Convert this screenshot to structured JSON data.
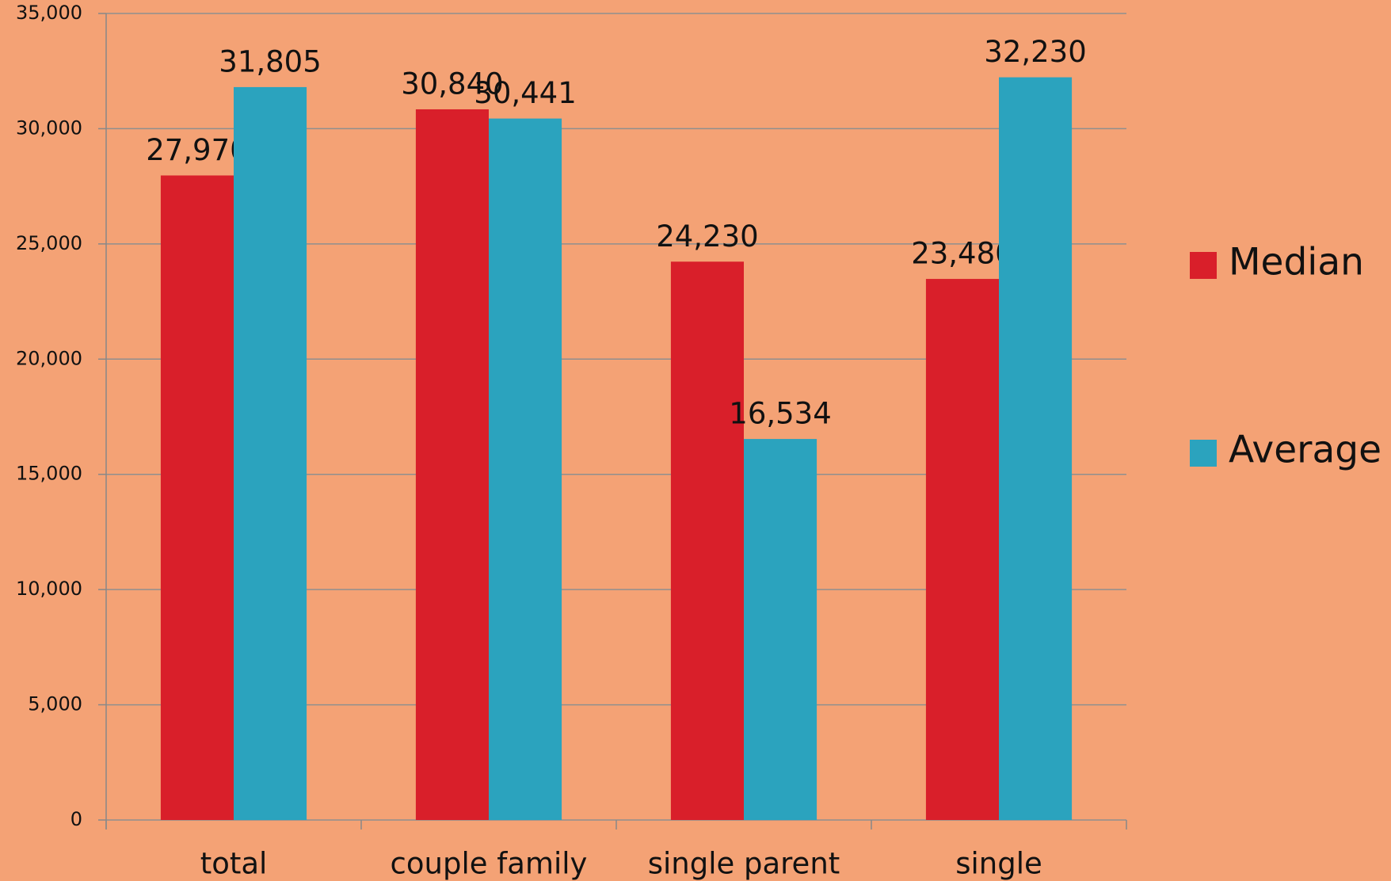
{
  "chart_data": {
    "type": "bar",
    "categories": [
      "total",
      "couple family",
      "single parent",
      "single"
    ],
    "series": [
      {
        "name": "Median",
        "color": "#D91F2A",
        "values": [
          27970,
          30840,
          24230,
          23480
        ],
        "value_labels": [
          "27,970",
          "30,840",
          "24,230",
          "23,480"
        ]
      },
      {
        "name": "Average",
        "color": "#2BA3BE",
        "values": [
          31805,
          30441,
          16534,
          32230
        ],
        "value_labels": [
          "31,805",
          "30,441",
          "16,534",
          "32,230"
        ]
      }
    ],
    "ylim": [
      0,
      35000
    ],
    "yticks": [
      0,
      {
        "value": 5000,
        "label": "5,000"
      },
      {
        "value": 10000,
        "label": "10,000"
      },
      {
        "value": 15000,
        "label": "15,000"
      },
      {
        "value": 20000,
        "label": "20,000"
      },
      {
        "value": 25000,
        "label": "25,000"
      },
      {
        "value": 30000,
        "label": "30,000"
      },
      {
        "value": 35000,
        "label": "35,000"
      }
    ],
    "grid": true,
    "legend": "right"
  }
}
